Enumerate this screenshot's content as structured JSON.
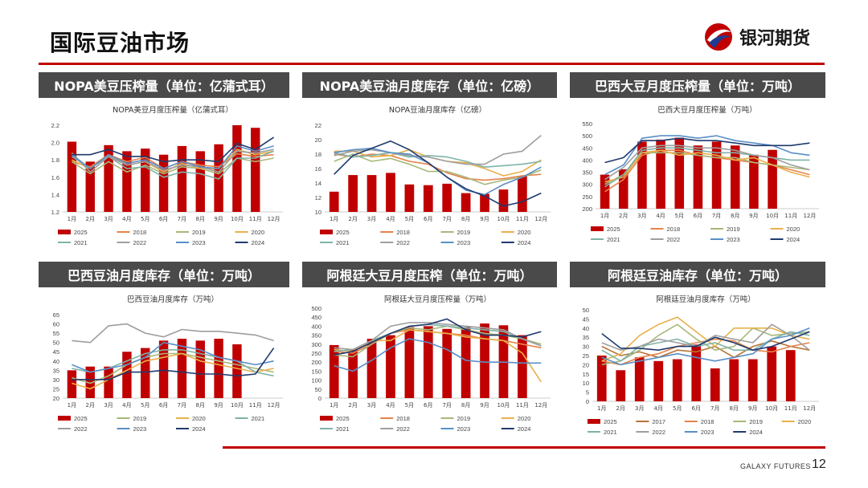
{
  "header": {
    "title": "国际豆油市场",
    "brand_name": "银河期货",
    "brand_colors": [
      "#c00000",
      "#1f3a93"
    ]
  },
  "footer": {
    "brand_en": "GALAXY FUTURES",
    "page_number": "12"
  },
  "series_colors": {
    "2017": "#b87333",
    "2018": "#e6834a",
    "2019": "#a6b87a",
    "2020": "#e8b04a",
    "2021": "#7fb3a8",
    "2022": "#9e9e9e",
    "2023": "#5a8fc7",
    "2024": "#1f3a6e"
  },
  "months": [
    "1月",
    "2月",
    "3月",
    "4月",
    "5月",
    "6月",
    "7月",
    "8月",
    "9月",
    "10月",
    "11月",
    "12月"
  ],
  "panels": [
    {
      "header": "NOPA美豆压榨量（单位：亿蒲式耳）",
      "chart_data": {
        "type": "bar+line",
        "title": "NOPA美豆月度压榨量（亿蒲式耳）",
        "ylim": [
          1.2,
          2.2
        ],
        "yticks": [
          "1.2",
          "1.4",
          "1.6",
          "1.8",
          "2.0",
          "2.2"
        ],
        "bar": {
          "name": "2025",
          "color": "#c00000",
          "values": [
            2.01,
            1.78,
            1.97,
            1.9,
            1.93,
            1.86,
            1.96,
            1.9,
            1.98,
            2.21,
            2.17,
            1.2
          ]
        },
        "series": [
          {
            "name": "2018",
            "values": [
              1.78,
              1.72,
              1.86,
              1.78,
              1.83,
              1.7,
              1.78,
              1.74,
              1.72,
              1.87,
              1.84,
              1.86
            ]
          },
          {
            "name": "2019",
            "values": [
              1.78,
              1.64,
              1.78,
              1.66,
              1.74,
              1.64,
              1.72,
              1.7,
              1.64,
              1.82,
              1.78,
              1.82
            ]
          },
          {
            "name": "2020",
            "values": [
              1.8,
              1.7,
              1.86,
              1.74,
              1.78,
              1.66,
              1.76,
              1.7,
              1.7,
              1.92,
              1.86,
              1.9
            ]
          },
          {
            "name": "2021",
            "values": [
              1.84,
              1.7,
              1.84,
              1.7,
              1.72,
              1.6,
              1.66,
              1.64,
              1.58,
              1.82,
              1.82,
              1.9
            ]
          },
          {
            "name": "2022",
            "values": [
              1.88,
              1.66,
              1.84,
              1.74,
              1.78,
              1.68,
              1.74,
              1.72,
              1.66,
              1.9,
              1.88,
              1.92
            ]
          },
          {
            "name": "2023",
            "values": [
              1.86,
              1.7,
              1.86,
              1.76,
              1.8,
              1.7,
              1.78,
              1.72,
              1.7,
              1.96,
              1.9,
              1.96
            ]
          },
          {
            "name": "2024",
            "values": [
              1.86,
              1.86,
              1.92,
              1.84,
              1.84,
              1.78,
              1.8,
              1.8,
              1.78,
              1.99,
              1.92,
              2.06
            ]
          }
        ],
        "legend": [
          "2025",
          "2018",
          "2019",
          "2020",
          "2021",
          "2022",
          "2023",
          "2024"
        ]
      }
    },
    {
      "header": "NOPA美豆油月度库存（单位：亿磅）",
      "chart_data": {
        "type": "bar+line",
        "title": "NOPA豆油月度库存（亿磅）",
        "ylim": [
          10,
          22
        ],
        "yticks": [
          "10",
          "12",
          "14",
          "16",
          "18",
          "20",
          "22"
        ],
        "bar": {
          "name": "2025",
          "color": "#c00000",
          "values": [
            12.8,
            15.1,
            15.1,
            15.4,
            13.8,
            13.7,
            13.9,
            12.6,
            12.5,
            13.1,
            15.0,
            10
          ]
        },
        "series": [
          {
            "name": "2018",
            "values": [
              18.0,
              17.6,
              18.0,
              17.8,
              17.0,
              16.6,
              15.4,
              14.6,
              14.4,
              14.6,
              15.0,
              15.2
            ]
          },
          {
            "name": "2019",
            "values": [
              17.0,
              18.0,
              17.0,
              17.4,
              16.6,
              15.6,
              15.6,
              14.8,
              13.8,
              14.4,
              14.8,
              15.8
            ]
          },
          {
            "name": "2020",
            "values": [
              18.4,
              18.4,
              17.6,
              17.8,
              18.6,
              17.6,
              17.0,
              16.8,
              16.0,
              15.0,
              15.6,
              17.2
            ]
          },
          {
            "name": "2021",
            "values": [
              18.2,
              17.6,
              17.8,
              18.2,
              17.6,
              17.8,
              17.6,
              17.0,
              16.2,
              16.4,
              16.6,
              17.0
            ]
          },
          {
            "name": "2022",
            "values": [
              17.8,
              18.4,
              18.6,
              18.2,
              17.8,
              17.6,
              17.0,
              16.6,
              16.6,
              18.0,
              18.4,
              20.6
            ]
          },
          {
            "name": "2023",
            "values": [
              18.2,
              18.6,
              18.8,
              18.2,
              18.0,
              16.8,
              14.8,
              13.0,
              12.4,
              13.8,
              14.8,
              16.2
            ]
          },
          {
            "name": "2024",
            "values": [
              15.2,
              17.8,
              18.8,
              19.8,
              18.6,
              16.8,
              14.8,
              13.2,
              12.2,
              10.8,
              11.4,
              12.6
            ]
          }
        ],
        "legend": [
          "2025",
          "2018",
          "2019",
          "2020",
          "2021",
          "2022",
          "2023",
          "2024"
        ]
      }
    },
    {
      "header": "巴西大豆月度压榨量（单位：万吨）",
      "chart_data": {
        "type": "bar+line",
        "title": "巴西大豆月度压榨量（万吨）",
        "ylim": [
          200,
          550
        ],
        "yticks": [
          "200",
          "250",
          "300",
          "350",
          "400",
          "450",
          "500",
          "550"
        ],
        "bar": {
          "name": "2025",
          "color": "#c00000",
          "values": [
            340,
            362,
            476,
            484,
            492,
            460,
            476,
            460,
            422,
            442,
            200,
            200
          ]
        },
        "series": [
          {
            "name": "2018",
            "values": [
              270,
              320,
              420,
              440,
              440,
              420,
              410,
              400,
              390,
              380,
              360,
              340
            ]
          },
          {
            "name": "2019",
            "values": [
              300,
              340,
              430,
              430,
              430,
              420,
              410,
              410,
              390,
              380,
              370,
              360
            ]
          },
          {
            "name": "2020",
            "values": [
              310,
              330,
              430,
              440,
              420,
              430,
              420,
              400,
              410,
              380,
              350,
              330
            ]
          },
          {
            "name": "2021",
            "values": [
              290,
              340,
              440,
              450,
              450,
              440,
              430,
              430,
              420,
              410,
              400,
              400
            ]
          },
          {
            "name": "2022",
            "values": [
              320,
              370,
              450,
              460,
              460,
              450,
              450,
              440,
              420,
              410,
              380,
              360
            ]
          },
          {
            "name": "2023",
            "values": [
              340,
              380,
              490,
              500,
              500,
              490,
              500,
              480,
              470,
              460,
              430,
              420
            ]
          },
          {
            "name": "2024",
            "values": [
              390,
              410,
              480,
              480,
              490,
              480,
              480,
              470,
              460,
              460,
              460,
              470
            ]
          }
        ],
        "legend": [
          "2025",
          "2018",
          "2019",
          "2020",
          "2021",
          "2022",
          "2023",
          "2024"
        ]
      }
    },
    {
      "header": "巴西豆油月度库存（单位：万吨）",
      "chart_data": {
        "type": "bar+line",
        "title": "巴西豆油月度库存（万吨）",
        "ylim": [
          20,
          65
        ],
        "yticks": [
          "20",
          "25",
          "30",
          "35",
          "40",
          "45",
          "50",
          "55",
          "60",
          "65"
        ],
        "bar": {
          "name": "2025",
          "color": "#c00000",
          "values": [
            35,
            37,
            37,
            45,
            47,
            51,
            52,
            51,
            52,
            49,
            20,
            20
          ]
        },
        "series": [
          {
            "name": "2019",
            "values": [
              31,
              28,
              32,
              38,
              42,
              44,
              44,
              42,
              40,
              38,
              36,
              34
            ]
          },
          {
            "name": "2020",
            "values": [
              28,
              25,
              30,
              35,
              40,
              42,
              44,
              40,
              38,
              36,
              34,
              36
            ]
          },
          {
            "name": "2021",
            "values": [
              36,
              34,
              36,
              40,
              44,
              46,
              46,
              44,
              42,
              40,
              34,
              32
            ]
          },
          {
            "name": "2022",
            "values": [
              51,
              50,
              59,
              60,
              55,
              53,
              57,
              56,
              56,
              55,
              54,
              51
            ]
          },
          {
            "name": "2023",
            "values": [
              38,
              34,
              36,
              38,
              42,
              50,
              48,
              46,
              42,
              40,
              38,
              40
            ]
          },
          {
            "name": "2024",
            "values": [
              30,
              30,
              30,
              34,
              34,
              35,
              34,
              33,
              33,
              32,
              33,
              47
            ]
          }
        ],
        "legend": [
          "2025",
          "2019",
          "2020",
          "2021",
          "2022",
          "2023",
          "2024"
        ]
      }
    },
    {
      "header": "阿根廷大豆月度压榨（单位：万吨）",
      "chart_data": {
        "type": "bar+line",
        "title": "阿根廷大豆月度压榨量（万吨）",
        "ylim": [
          0,
          500
        ],
        "yticks": [
          "0",
          "50",
          "100",
          "150",
          "200",
          "250",
          "300",
          "350",
          "400",
          "450",
          "500"
        ],
        "bar": {
          "name": "2025",
          "color": "#c00000",
          "values": [
            295,
            272,
            330,
            350,
            395,
            400,
            385,
            395,
            415,
            405,
            350,
            0
          ]
        },
        "series": [
          {
            "name": "2018",
            "values": [
              260,
              250,
              300,
              360,
              380,
              370,
              360,
              350,
              330,
              320,
              300,
              280
            ]
          },
          {
            "name": "2019",
            "values": [
              240,
              230,
              300,
              360,
              390,
              380,
              400,
              380,
              360,
              350,
              330,
              300
            ]
          },
          {
            "name": "2020",
            "values": [
              270,
              260,
              320,
              320,
              380,
              370,
              360,
              340,
              330,
              320,
              250,
              90
            ]
          },
          {
            "name": "2021",
            "values": [
              260,
              270,
              320,
              360,
              400,
              410,
              400,
              390,
              380,
              370,
              330,
              290
            ]
          },
          {
            "name": "2022",
            "values": [
              280,
              270,
              320,
              400,
              420,
              420,
              410,
              400,
              390,
              380,
              330,
              290
            ]
          },
          {
            "name": "2023",
            "values": [
              180,
              150,
              210,
              280,
              330,
              310,
              270,
              210,
              200,
              200,
              195,
              195
            ]
          },
          {
            "name": "2024",
            "values": [
              240,
              260,
              310,
              360,
              400,
              410,
              440,
              380,
              350,
              350,
              340,
              370
            ]
          }
        ],
        "legend": [
          "2025",
          "2018",
          "2019",
          "2020",
          "2021",
          "2022",
          "2023",
          "2024"
        ]
      }
    },
    {
      "header": "阿根廷豆油库存（单位：万吨）",
      "chart_data": {
        "type": "bar+line",
        "title": "阿根廷豆油月度库存（万吨）",
        "ylim": [
          0,
          50
        ],
        "yticks": [
          "0",
          "5",
          "10",
          "15",
          "20",
          "25",
          "30",
          "35",
          "40",
          "45",
          "50"
        ],
        "bar": {
          "name": "2025",
          "color": "#c00000",
          "values": [
            25,
            17,
            24,
            22,
            23,
            31,
            18,
            23,
            23,
            30,
            28,
            0
          ]
        },
        "series": [
          {
            "name": "2017",
            "values": [
              30,
              25,
              27,
              24,
              28,
              27,
              30,
              24,
              30,
              33,
              30,
              28
            ]
          },
          {
            "name": "2018",
            "values": [
              22,
              20,
              24,
              26,
              30,
              32,
              34,
              33,
              28,
              27,
              30,
              32
            ]
          },
          {
            "name": "2019",
            "values": [
              20,
              22,
              28,
              36,
              42,
              34,
              28,
              30,
              40,
              36,
              37,
              38
            ]
          },
          {
            "name": "2020",
            "values": [
              22,
              26,
              36,
              42,
              46,
              38,
              30,
              40,
              40,
              40,
              36,
              34
            ]
          },
          {
            "name": "2021",
            "values": [
              28,
              22,
              30,
              32,
              34,
              30,
              32,
              28,
              28,
              34,
              38,
              36
            ]
          },
          {
            "name": "2022",
            "values": [
              32,
              28,
              30,
              34,
              32,
              30,
              36,
              34,
              32,
              42,
              36,
              28
            ]
          },
          {
            "name": "2023",
            "values": [
              24,
              20,
              22,
              24,
              26,
              24,
              22,
              24,
              26,
              34,
              36,
              40
            ]
          },
          {
            "name": "2024",
            "values": [
              37,
              29,
              29,
              28,
              30,
              30,
              35,
              32,
              28,
              30,
              34,
              38
            ]
          }
        ],
        "legend": [
          "2025",
          "2017",
          "2018",
          "2019",
          "2020",
          "2021",
          "2022",
          "2023",
          "2024"
        ]
      }
    }
  ]
}
